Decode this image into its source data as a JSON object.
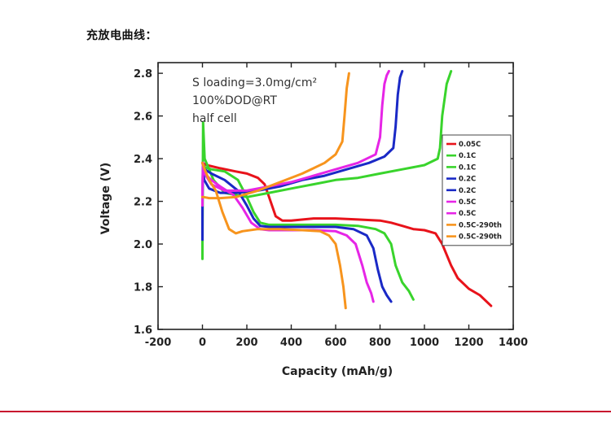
{
  "page": {
    "section_title": "充放电曲线：",
    "divider_color": "#c8102e"
  },
  "chart_data": {
    "type": "line",
    "xlabel": "Capacity (mAh/g)",
    "ylabel": "Voltage (V)",
    "xlim": [
      -200,
      1400
    ],
    "ylim": [
      1.6,
      2.85
    ],
    "xticks": [
      -200,
      0,
      200,
      400,
      600,
      800,
      1000,
      1200,
      1400
    ],
    "yticks": [
      1.6,
      1.8,
      2.0,
      2.2,
      2.4,
      2.6,
      2.8
    ],
    "ytick_labels": [
      "1.6",
      "1.8",
      "2.0",
      "2.2",
      "2.4",
      "2.6",
      "2.8"
    ],
    "grid": false,
    "legend_position": "right",
    "annotations": [
      "S loading=3.0mg/cm²",
      "100%DOD@RT",
      "half cell"
    ],
    "series": [
      {
        "name": "0.05C",
        "color": "#e8131b",
        "kind": "discharge",
        "x": [
          0,
          20,
          80,
          150,
          200,
          250,
          280,
          300,
          330,
          360,
          400,
          500,
          600,
          700,
          800,
          850,
          900,
          950,
          1000,
          1050,
          1080,
          1120,
          1150,
          1200,
          1250,
          1300
        ],
        "y": [
          2.38,
          2.37,
          2.355,
          2.34,
          2.33,
          2.31,
          2.28,
          2.22,
          2.13,
          2.11,
          2.11,
          2.12,
          2.12,
          2.115,
          2.11,
          2.1,
          2.085,
          2.07,
          2.065,
          2.05,
          2.0,
          1.9,
          1.84,
          1.79,
          1.76,
          1.71
        ]
      },
      {
        "name": "0.1C",
        "color": "#39d42c",
        "kind": "discharge",
        "x": [
          0,
          10,
          40,
          100,
          160,
          200,
          230,
          260,
          300,
          400,
          500,
          600,
          700,
          780,
          820,
          850,
          870,
          900,
          930,
          950
        ],
        "y": [
          2.38,
          2.36,
          2.35,
          2.34,
          2.3,
          2.22,
          2.15,
          2.1,
          2.09,
          2.09,
          2.09,
          2.09,
          2.085,
          2.07,
          2.05,
          2.0,
          1.9,
          1.82,
          1.78,
          1.74
        ]
      },
      {
        "name": "0.1C",
        "color": "#39d42c",
        "kind": "charge",
        "x": [
          0,
          0,
          1,
          3,
          10,
          50,
          100,
          200,
          300,
          400,
          500,
          600,
          700,
          800,
          900,
          1000,
          1060,
          1070,
          1080,
          1100,
          1120
        ],
        "y": [
          1.93,
          2.0,
          2.2,
          2.57,
          2.4,
          2.3,
          2.24,
          2.22,
          2.24,
          2.26,
          2.28,
          2.3,
          2.31,
          2.33,
          2.35,
          2.37,
          2.4,
          2.45,
          2.6,
          2.75,
          2.81
        ]
      },
      {
        "name": "0.2C",
        "color": "#1a29c6",
        "kind": "discharge",
        "x": [
          0,
          10,
          40,
          100,
          160,
          200,
          230,
          260,
          300,
          400,
          500,
          600,
          680,
          740,
          770,
          790,
          810,
          830,
          850
        ],
        "y": [
          2.38,
          2.35,
          2.33,
          2.3,
          2.25,
          2.18,
          2.12,
          2.085,
          2.08,
          2.08,
          2.08,
          2.08,
          2.07,
          2.04,
          1.98,
          1.88,
          1.8,
          1.76,
          1.73
        ]
      },
      {
        "name": "0.2C",
        "color": "#1a29c6",
        "kind": "charge",
        "x": [
          0,
          0,
          2,
          8,
          30,
          80,
          150,
          250,
          350,
          450,
          550,
          650,
          750,
          820,
          860,
          870,
          880,
          890,
          900
        ],
        "y": [
          2.02,
          2.2,
          2.36,
          2.3,
          2.26,
          2.24,
          2.24,
          2.25,
          2.27,
          2.3,
          2.32,
          2.35,
          2.38,
          2.41,
          2.45,
          2.55,
          2.7,
          2.78,
          2.81
        ]
      },
      {
        "name": "0.5C",
        "color": "#e625e6",
        "kind": "discharge",
        "x": [
          0,
          10,
          40,
          80,
          140,
          180,
          220,
          260,
          300,
          400,
          500,
          600,
          650,
          690,
          720,
          740,
          760,
          770
        ],
        "y": [
          2.38,
          2.33,
          2.3,
          2.27,
          2.23,
          2.17,
          2.1,
          2.07,
          2.065,
          2.065,
          2.065,
          2.06,
          2.04,
          2.0,
          1.9,
          1.82,
          1.77,
          1.73
        ]
      },
      {
        "name": "0.5C",
        "color": "#e625e6",
        "kind": "charge",
        "x": [
          0,
          0,
          3,
          10,
          40,
          100,
          200,
          300,
          400,
          500,
          600,
          700,
          780,
          800,
          810,
          820,
          830,
          840
        ],
        "y": [
          2.18,
          2.25,
          2.38,
          2.33,
          2.28,
          2.25,
          2.25,
          2.27,
          2.29,
          2.32,
          2.35,
          2.38,
          2.42,
          2.5,
          2.65,
          2.75,
          2.79,
          2.81
        ]
      },
      {
        "name": "0.5C-290th",
        "color": "#f7941d",
        "kind": "discharge",
        "x": [
          0,
          10,
          30,
          60,
          90,
          120,
          150,
          180,
          250,
          350,
          450,
          530,
          570,
          600,
          620,
          635,
          645
        ],
        "y": [
          2.38,
          2.35,
          2.3,
          2.25,
          2.15,
          2.07,
          2.05,
          2.06,
          2.07,
          2.07,
          2.065,
          2.06,
          2.04,
          2.0,
          1.9,
          1.8,
          1.7
        ]
      },
      {
        "name": "0.5C-290th",
        "color": "#f7941d",
        "kind": "charge",
        "x": [
          0,
          5,
          30,
          80,
          150,
          250,
          350,
          450,
          550,
          600,
          630,
          640,
          650,
          660
        ],
        "y": [
          2.22,
          2.22,
          2.215,
          2.215,
          2.22,
          2.25,
          2.29,
          2.33,
          2.38,
          2.42,
          2.48,
          2.6,
          2.73,
          2.8
        ]
      }
    ]
  }
}
